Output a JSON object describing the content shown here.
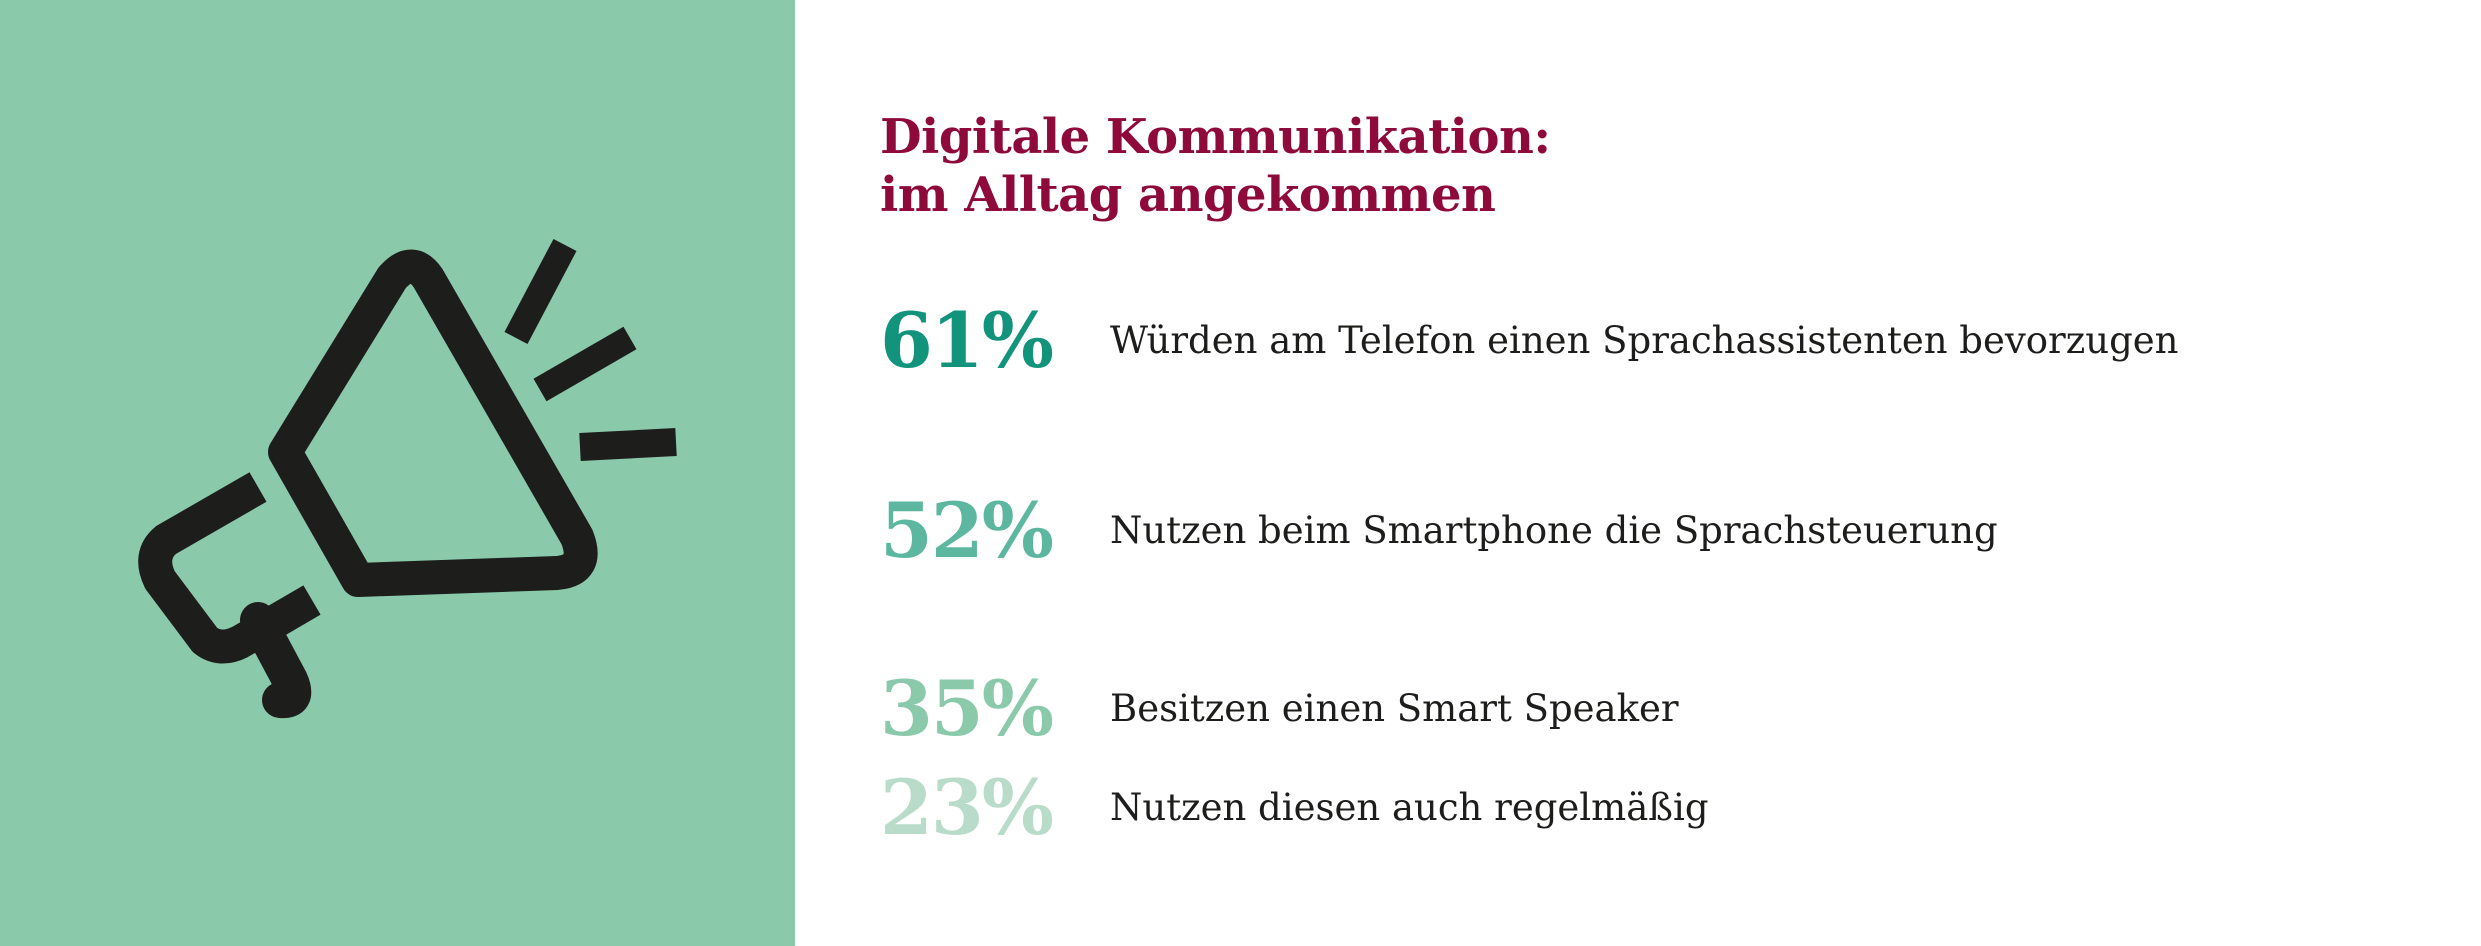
{
  "colors": {
    "panel": "#8bc9ab",
    "title": "#8e0a3b",
    "icon": "#1d1d1b",
    "text": "#1d1d1b"
  },
  "icon": {
    "name": "megaphone-icon"
  },
  "title": {
    "line1": "Digitale Kommunikation:",
    "line2": "im Alltag angekommen"
  },
  "stats": [
    {
      "value": "61%",
      "label": "Würden am Telefon einen Sprachassistenten bevorzugen",
      "color": "#12937c"
    },
    {
      "value": "52%",
      "label": "Nutzen beim Smartphone die Sprachsteuerung",
      "color": "#5db7a0"
    },
    {
      "value": "35%",
      "label": "Besitzen einen Smart Speaker",
      "color": "#8bc9ab"
    },
    {
      "value": "23%",
      "label": "Nutzen diesen auch regelmäßig",
      "color": "#b8dcc9"
    }
  ]
}
